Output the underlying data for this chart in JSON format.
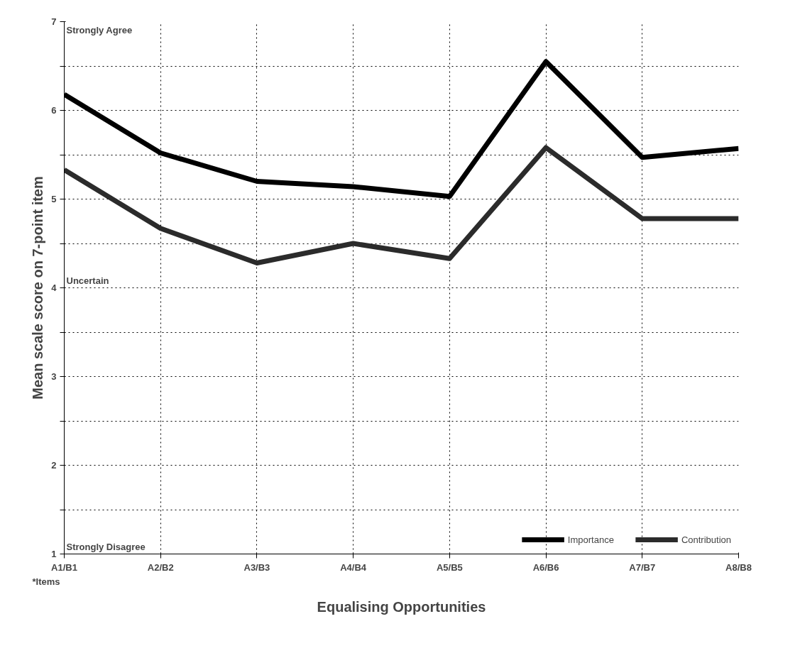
{
  "chart_data": {
    "type": "line",
    "xlabel": "Equalising Opportunities",
    "ylabel": "Mean scale score on 7-point item",
    "categories": [
      "A1/B1",
      "A2/B2",
      "A3/B3",
      "A4/B4",
      "A5/B5",
      "A6/B6",
      "A7/B7",
      "A8/B8"
    ],
    "series": [
      {
        "name": "Importance",
        "color": "#000000",
        "values": [
          6.18,
          5.52,
          5.2,
          5.14,
          5.03,
          6.55,
          5.47,
          5.57
        ]
      },
      {
        "name": "Contribution",
        "color": "#2b2b2b",
        "values": [
          5.33,
          4.67,
          4.28,
          4.5,
          4.33,
          5.58,
          4.78,
          4.78
        ]
      }
    ],
    "ylim": [
      1,
      7
    ],
    "yticks": [
      1,
      {
        "value": 1.5,
        "label": null
      },
      2,
      {
        "value": 2.5,
        "label": null
      },
      3,
      {
        "value": 3.5,
        "label": null
      },
      4,
      {
        "value": 4.5,
        "label": null
      },
      5,
      {
        "value": 5.5,
        "label": null
      },
      6,
      {
        "value": 6.5,
        "label": null
      },
      7
    ],
    "annotations": [
      "Strongly Agree",
      "Uncertain",
      "Strongly Disagree",
      "*Items"
    ],
    "grid": true,
    "legend": "bottom right",
    "marker": "none",
    "line_style": "solid"
  }
}
